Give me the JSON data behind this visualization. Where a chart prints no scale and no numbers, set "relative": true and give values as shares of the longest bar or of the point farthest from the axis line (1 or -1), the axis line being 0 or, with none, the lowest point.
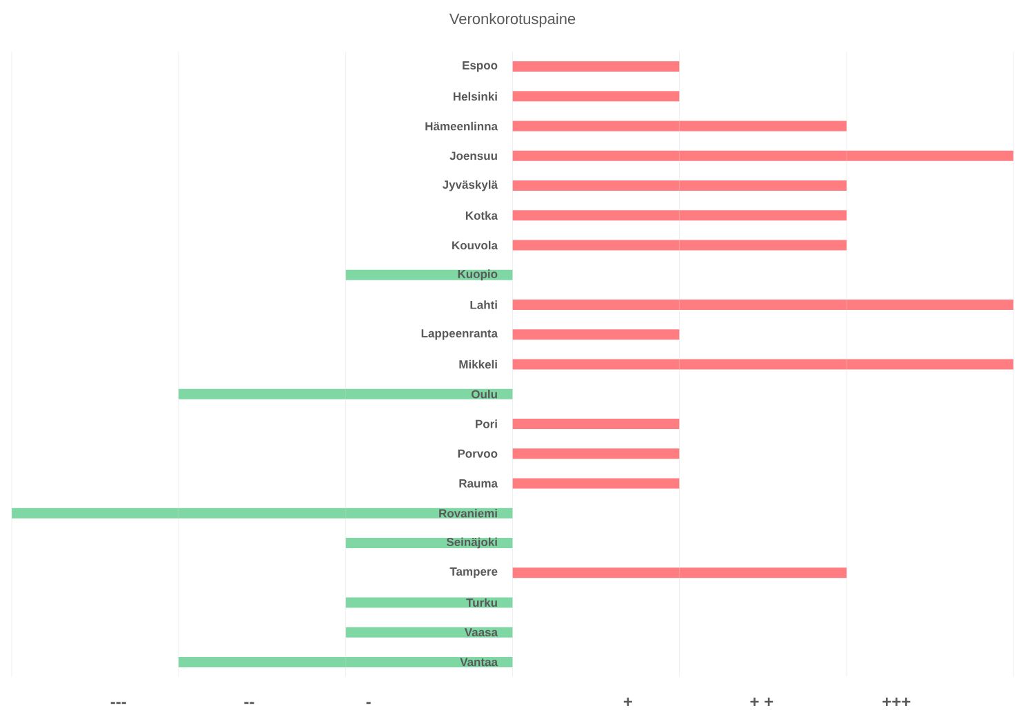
{
  "chart_data": {
    "type": "bar",
    "orientation": "horizontal",
    "title": "Veronkorotuspaine",
    "relative": true,
    "categories": [
      "Espoo",
      "Helsinki",
      "Hämeenlinna",
      "Joensuu",
      "Jyväskylä",
      "Kotka",
      "Kouvola",
      "Kuopio",
      "Lahti",
      "Lappeenranta",
      "Mikkeli",
      "Oulu",
      "Pori",
      "Porvoo",
      "Rauma",
      "Rovaniemi",
      "Seinäjoki",
      "Tampere",
      "Turku",
      "Vaasa",
      "Vantaa"
    ],
    "values": [
      0.333,
      0.333,
      0.667,
      1,
      0.667,
      0.667,
      0.667,
      -0.333,
      1,
      0.333,
      1,
      -0.667,
      0.333,
      0.333,
      0.333,
      -1,
      -0.333,
      0.667,
      -0.333,
      -0.333,
      -0.667
    ],
    "colors": [
      "#ff7c80",
      "#ff7c80",
      "#ff7c80",
      "#ff7c80",
      "#ff7c80",
      "#ff7c80",
      "#ff7c80",
      "#7fd8a4",
      "#ff7c80",
      "#ff7c80",
      "#ff7c80",
      "#7fd8a4",
      "#ff7c80",
      "#ff7c80",
      "#ff7c80",
      "#7fd8a4",
      "#7fd8a4",
      "#ff7c80",
      "#7fd8a4",
      "#7fd8a4",
      "#7fd8a4"
    ],
    "annotations": [
      "---",
      "--",
      "-",
      "+",
      "+ +",
      "+++"
    ],
    "grid": "x"
  }
}
